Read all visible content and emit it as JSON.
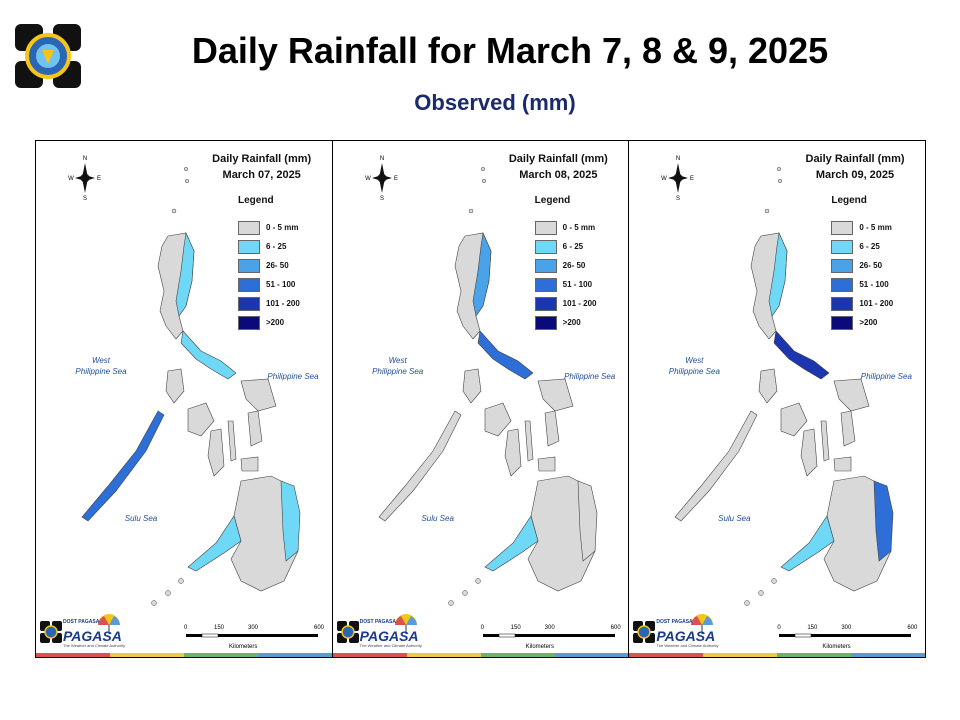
{
  "header": {
    "title": "Daily Rainfall for March 7, 8 & 9, 2025",
    "subtitle": "Observed (mm)"
  },
  "legend": {
    "title": "Legend",
    "items": [
      {
        "label": "0 - 5 mm",
        "color": "#d9d9d9"
      },
      {
        "label": "6 - 25",
        "color": "#6fd8f7"
      },
      {
        "label": "26- 50",
        "color": "#4aa3e8"
      },
      {
        "label": "51 - 100",
        "color": "#2d6fd6"
      },
      {
        "label": "101 - 200",
        "color": "#1c35b0"
      },
      {
        "label": ">200",
        "color": "#0a0a7a"
      }
    ]
  },
  "labels": {
    "west_sea": "West\nPhilippine Sea",
    "east_sea": "Philippine Sea",
    "sulu_sea": "Sulu Sea",
    "compass_n": "N",
    "compass_s": "S",
    "compass_e": "E",
    "compass_w": "W"
  },
  "scale": {
    "ticks": [
      "0",
      "150",
      "300",
      "600"
    ],
    "unit": "Kilometers"
  },
  "agency": {
    "name": "PAGASA",
    "small": "DOST PAGASA",
    "tagline": "The Weather and Climate Authority"
  },
  "panels": [
    {
      "title_line1": "Daily Rainfall (mm)",
      "title_line2": "March 07, 2025",
      "rain": {
        "luzon_east": "6 - 25",
        "bicol": "6 - 25",
        "palawan": "51 - 100",
        "mindanao_east": "6 - 25",
        "zamboanga": "6 - 25"
      }
    },
    {
      "title_line1": "Daily Rainfall (mm)",
      "title_line2": "March 08, 2025",
      "rain": {
        "luzon_east": "26- 50",
        "bicol": "51 - 100",
        "palawan": "0 - 5 mm",
        "mindanao_east": "0 - 5 mm",
        "zamboanga": "6 - 25"
      }
    },
    {
      "title_line1": "Daily Rainfall (mm)",
      "title_line2": "March 09, 2025",
      "rain": {
        "luzon_east": "6 - 25",
        "bicol": "101 - 200",
        "palawan": "0 - 5 mm",
        "mindanao_east": "51 - 100",
        "zamboanga": "6 - 25"
      }
    }
  ],
  "stripe_colors": [
    "#d9534f",
    "#f2c84b",
    "#6bb56b",
    "#5b9bd5"
  ]
}
